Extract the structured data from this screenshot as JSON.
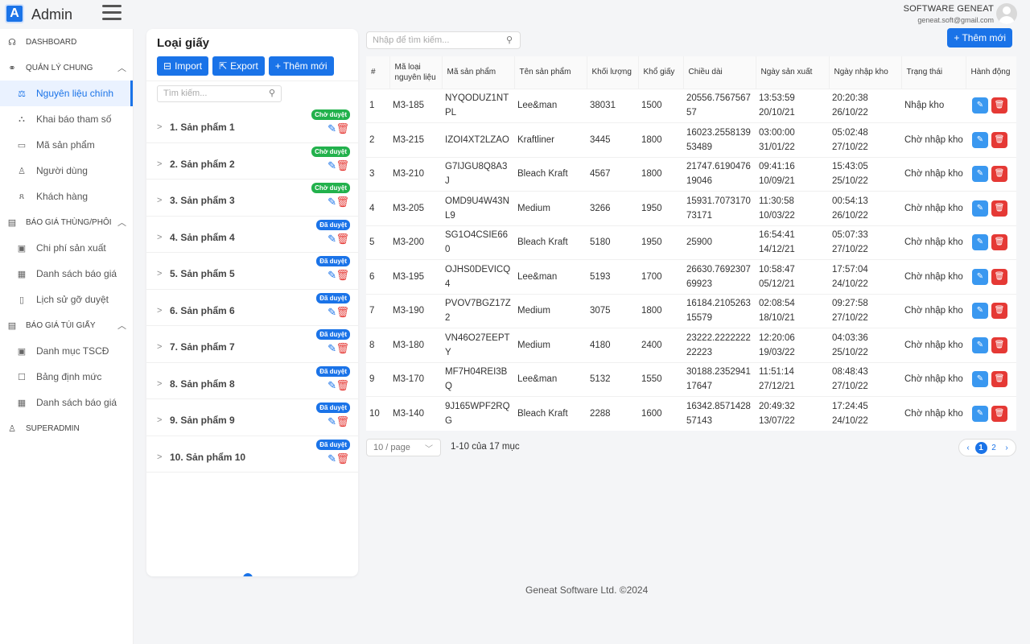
{
  "header": {
    "app_title": "Admin",
    "logo_letter": "A",
    "company_name": "SOFTWARE GENEAT",
    "company_email": "geneat.soft@gmail.com"
  },
  "sidebar": {
    "dashboard": "DASHBOARD",
    "section1": "QUẢN LÝ CHUNG",
    "section1_items": [
      "Nguyên liệu chính",
      "Khai báo tham số",
      "Mã sản phẩm",
      "Người dùng",
      "Khách hàng"
    ],
    "section2": "BÁO GIÁ THÙNG/PHÔI",
    "section2_items": [
      "Chi phí sản xuất",
      "Danh sách báo giá",
      "Lịch sử gỡ duyệt"
    ],
    "section3": "BÁO GIÁ TÚI GIẤY",
    "section3_items": [
      "Danh mục TSCĐ",
      "Bảng định mức",
      "Danh sách báo giá"
    ],
    "superadmin": "SUPERADMIN"
  },
  "left_panel": {
    "title": "Loại giấy",
    "import_label": "Import",
    "export_label": "Export",
    "add_label": "+ Thêm mới",
    "search_placeholder": "Tìm kiếm...",
    "products": [
      {
        "name": "1. Sản phẩm 1",
        "status": "Chờ duyệt"
      },
      {
        "name": "2. Sản phẩm 2",
        "status": "Chờ duyệt"
      },
      {
        "name": "3. Sản phẩm 3",
        "status": "Chờ duyệt"
      },
      {
        "name": "4. Sản phẩm 4",
        "status": "Đã duyệt"
      },
      {
        "name": "5. Sản phẩm 5",
        "status": "Đã duyệt"
      },
      {
        "name": "6. Sản phẩm 6",
        "status": "Đã duyệt"
      },
      {
        "name": "7. Sản phẩm 7",
        "status": "Đã duyệt"
      },
      {
        "name": "8. Sản phẩm 8",
        "status": "Đã duyệt"
      },
      {
        "name": "9. Sản phẩm 9",
        "status": "Đã duyệt"
      },
      {
        "name": "10. Sản phẩm 10",
        "status": "Đã duyệt"
      }
    ]
  },
  "main": {
    "search_placeholder": "Nhập để tìm kiếm...",
    "add_label": "+ Thêm mới",
    "columns": [
      "#",
      "Mã loại nguyên liệu",
      "Mã sản phẩm",
      "Tên sản phẩm",
      "Khối lượng",
      "Khổ giấy",
      "Chiều dài",
      "Ngày sản xuất",
      "Ngày nhập kho",
      "Trạng thái",
      "Hành động"
    ],
    "rows": [
      {
        "no": "1",
        "material_code": "M3-185",
        "product_code": "NYQODUZ1NTPL",
        "product_name": "Lee&man",
        "weight": "38031",
        "paper_size": "1500",
        "length": "20556.756756757",
        "mfg_time": "13:53:59",
        "mfg_date": "20/10/21",
        "stock_time": "20:20:38",
        "stock_date": "26/10/22",
        "status": "Nhập kho"
      },
      {
        "no": "2",
        "material_code": "M3-215",
        "product_code": "IZOI4XT2LZAO",
        "product_name": "Kraftliner",
        "weight": "3445",
        "paper_size": "1800",
        "length": "16023.255813953489",
        "mfg_time": "03:00:00",
        "mfg_date": "31/01/22",
        "stock_time": "05:02:48",
        "stock_date": "27/10/22",
        "status": "Chờ nhập kho"
      },
      {
        "no": "3",
        "material_code": "M3-210",
        "product_code": "G7IJGU8Q8A3J",
        "product_name": "Bleach Kraft",
        "weight": "4567",
        "paper_size": "1800",
        "length": "21747.619047619046",
        "mfg_time": "09:41:16",
        "mfg_date": "10/09/21",
        "stock_time": "15:43:05",
        "stock_date": "25/10/22",
        "status": "Chờ nhập kho"
      },
      {
        "no": "4",
        "material_code": "M3-205",
        "product_code": "OMD9U4W43NL9",
        "product_name": "Medium",
        "weight": "3266",
        "paper_size": "1950",
        "length": "15931.707317073171",
        "mfg_time": "11:30:58",
        "mfg_date": "10/03/22",
        "stock_time": "00:54:13",
        "stock_date": "26/10/22",
        "status": "Chờ nhập kho"
      },
      {
        "no": "5",
        "material_code": "M3-200",
        "product_code": "SG1O4CSIE660",
        "product_name": "Bleach Kraft",
        "weight": "5180",
        "paper_size": "1950",
        "length": "25900",
        "mfg_time": "16:54:41",
        "mfg_date": "14/12/21",
        "stock_time": "05:07:33",
        "stock_date": "27/10/22",
        "status": "Chờ nhập kho"
      },
      {
        "no": "6",
        "material_code": "M3-195",
        "product_code": "OJHS0DEVICQ4",
        "product_name": "Lee&man",
        "weight": "5193",
        "paper_size": "1700",
        "length": "26630.769230769923",
        "mfg_time": "10:58:47",
        "mfg_date": "05/12/21",
        "stock_time": "17:57:04",
        "stock_date": "24/10/22",
        "status": "Chờ nhập kho"
      },
      {
        "no": "7",
        "material_code": "M3-190",
        "product_code": "PVOV7BGZ17Z2",
        "product_name": "Medium",
        "weight": "3075",
        "paper_size": "1800",
        "length": "16184.210526315579",
        "mfg_time": "02:08:54",
        "mfg_date": "18/10/21",
        "stock_time": "09:27:58",
        "stock_date": "27/10/22",
        "status": "Chờ nhập kho"
      },
      {
        "no": "8",
        "material_code": "M3-180",
        "product_code": "VN46O27EEPTY",
        "product_name": "Medium",
        "weight": "4180",
        "paper_size": "2400",
        "length": "23222.222222222223",
        "mfg_time": "12:20:06",
        "mfg_date": "19/03/22",
        "stock_time": "04:03:36",
        "stock_date": "25/10/22",
        "status": "Chờ nhập kho"
      },
      {
        "no": "9",
        "material_code": "M3-170",
        "product_code": "MF7H04REI3BQ",
        "product_name": "Lee&man",
        "weight": "5132",
        "paper_size": "1550",
        "length": "30188.235294117647",
        "mfg_time": "11:51:14",
        "mfg_date": "27/12/21",
        "stock_time": "08:48:43",
        "stock_date": "27/10/22",
        "status": "Chờ nhập kho"
      },
      {
        "no": "10",
        "material_code": "M3-140",
        "product_code": "9J165WPF2RQG",
        "product_name": "Bleach Kraft",
        "weight": "2288",
        "paper_size": "1600",
        "length": "16342.857142857143",
        "mfg_time": "20:49:32",
        "mfg_date": "13/07/22",
        "stock_time": "17:24:45",
        "stock_date": "24/10/22",
        "status": "Chờ nhập kho"
      }
    ],
    "page_size": "10 / page",
    "range_info": "1-10 của 17 mục",
    "pages": [
      "1",
      "2"
    ],
    "current_page": "1"
  },
  "footer": "Geneat Software Ltd. ©2024",
  "colors": {
    "primary": "#1a73e8",
    "pending_badge": "#22b14c",
    "danger": "#e53935"
  }
}
